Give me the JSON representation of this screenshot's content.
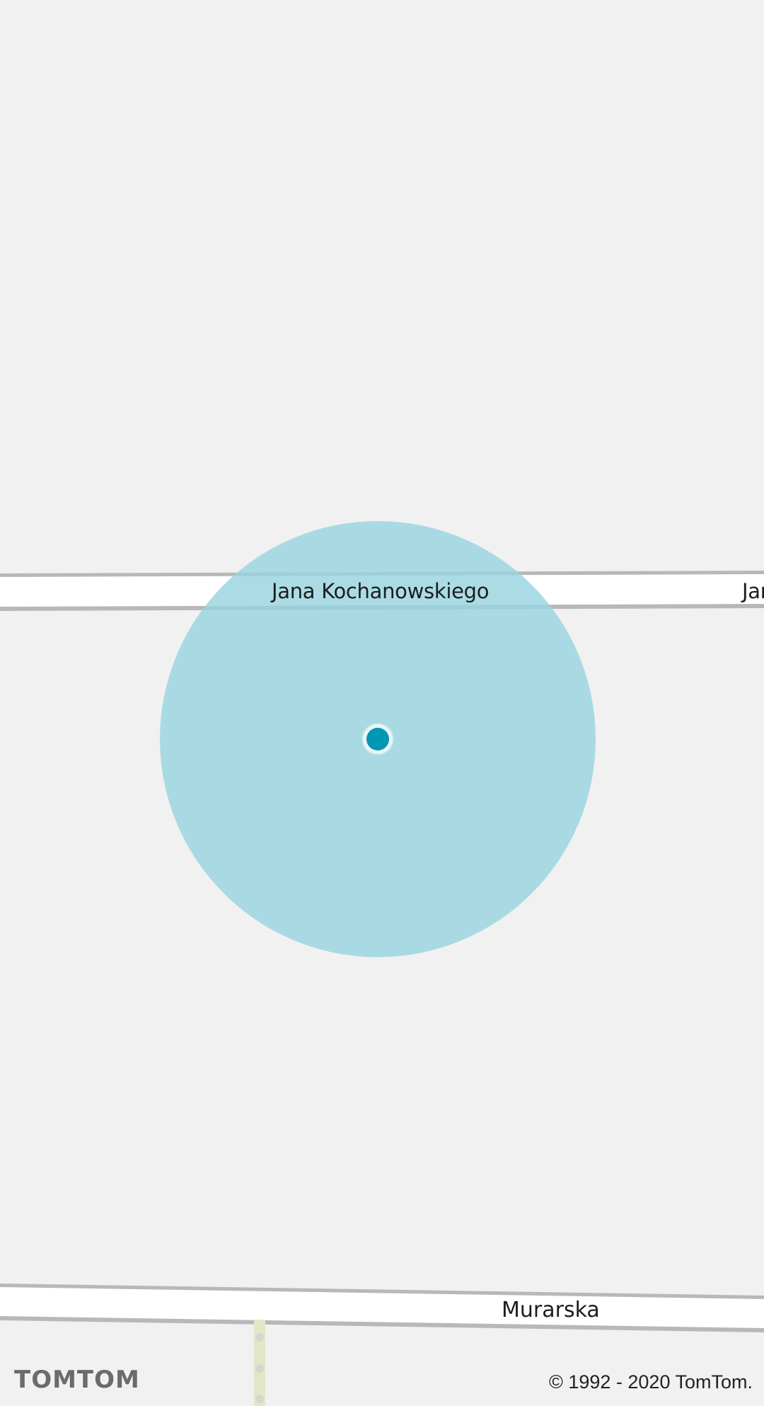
{
  "map": {
    "streets": [
      {
        "name": "Jana Kochanowskiego",
        "repeat_fragment": "Jan"
      },
      {
        "name": "Murarska"
      }
    ],
    "location_marker": {
      "icon": "current-location-dot-icon",
      "accuracy_circle_color": "#a8d8e0",
      "dot_color": "#0096b4"
    },
    "colors": {
      "background": "#f1f1f1",
      "road_fill": "#ffffff",
      "road_casing": "#b8b8b8",
      "footpath": "#e4e6c8"
    }
  },
  "attribution": {
    "brand": "TOMTOM",
    "copyright": "© 1992 - 2020 TomTom."
  }
}
